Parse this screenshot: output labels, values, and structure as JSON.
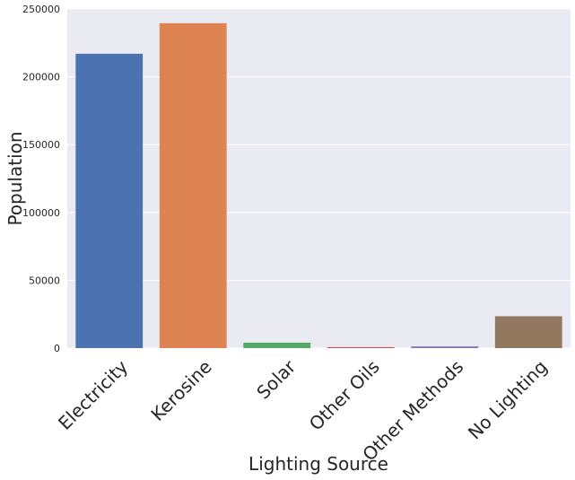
{
  "chart_data": {
    "type": "bar",
    "title": "",
    "xlabel": "Lighting Source",
    "ylabel": "Population",
    "categories": [
      "Electricity",
      "Kerosine",
      "Solar",
      "Other Oils",
      "Other Methods",
      "No Lighting"
    ],
    "values": [
      217000,
      239500,
      4000,
      700,
      1200,
      23500
    ],
    "colors": [
      "#4c72b0",
      "#dd8452",
      "#55a868",
      "#c44e52",
      "#8172b3",
      "#937860"
    ],
    "ylim": [
      0,
      250000
    ],
    "yticks": [
      0,
      50000,
      100000,
      150000,
      200000,
      250000
    ],
    "ytick_labels": [
      "0",
      "50000",
      "100000",
      "150000",
      "200000",
      "250000"
    ],
    "grid": true,
    "background": "#eaeaf2",
    "grid_color": "#ffffff"
  }
}
